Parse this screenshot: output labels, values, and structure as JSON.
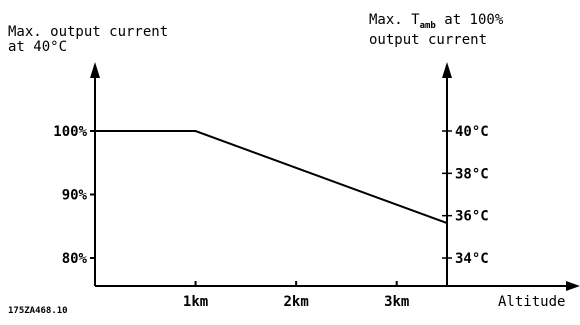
{
  "chart_data": {
    "type": "line",
    "left_axis_title": [
      "Max. output current",
      "at 40°C"
    ],
    "right_axis_title": {
      "line1_prefix": "Max. T",
      "line1_subscript": "amb",
      "line1_suffix": " at 100%",
      "line2": "output current"
    },
    "xlabel": "Altitude",
    "x_ticks": [
      {
        "value": 1000,
        "label": "1km"
      },
      {
        "value": 2000,
        "label": "2km"
      },
      {
        "value": 3000,
        "label": "3km"
      }
    ],
    "xlim": [
      0,
      3500
    ],
    "left_ylim": [
      77.5,
      100
    ],
    "left_y_ticks": [
      {
        "value": 100,
        "label": "100%"
      },
      {
        "value": 90,
        "label": "90%"
      },
      {
        "value": 80,
        "label": "80%"
      }
    ],
    "right_y_ticks": [
      {
        "value": 40,
        "label": "40°C"
      },
      {
        "value": 38,
        "label": "38°C"
      },
      {
        "value": 36,
        "label": "36°C"
      },
      {
        "value": 34,
        "label": "34°C"
      }
    ],
    "series": [
      {
        "x": [
          0,
          1000,
          3500
        ],
        "y": [
          100,
          100,
          85.5
        ]
      }
    ],
    "figure_code": "175ZA468.10"
  }
}
